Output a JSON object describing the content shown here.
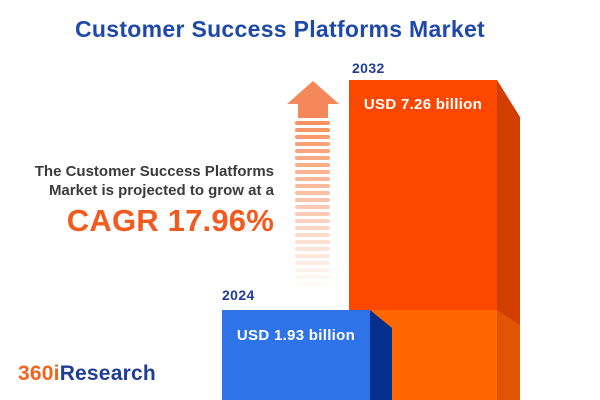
{
  "title": "Customer Success Platforms Market",
  "annotation": {
    "line1": "The Customer Success Platforms",
    "line2": "Market is projected to grow at a",
    "cagr": "CAGR 17.96%"
  },
  "bars": {
    "y2024": {
      "year": "2024",
      "label": "USD 1.93 billion"
    },
    "y2032": {
      "year": "2032",
      "label": "USD 7.26 billion"
    }
  },
  "logo": {
    "part1": "360i",
    "part2": "Research"
  },
  "colors": {
    "title_navy": "#1E49A8",
    "annotation_text": "#3B3B3B",
    "cagr_orange": "#F25A1E",
    "bar_2024_front": "#2E73E8",
    "bar_2024_side": "#04308C",
    "bar_2032_front": "#FB4700",
    "bar_2032_side": "#D23D00",
    "bar_2032_base_front": "#FE6702",
    "bar_2032_base_side": "#E15402",
    "arrow_head": "#F5885A",
    "arrow_stripe": "#F78E5C",
    "logo_orange": "#F2641C",
    "logo_navy": "#1E3D96"
  },
  "chart_data": {
    "type": "bar",
    "title": "Customer Success Platforms Market",
    "categories": [
      "2024",
      "2032"
    ],
    "values": [
      1.93,
      7.26
    ],
    "unit": "USD billion",
    "value_labels": [
      "USD 1.93 billion",
      "USD 7.26 billion"
    ],
    "cagr_percent": 17.96,
    "annotation": "The Customer Success Platforms Market is projected to grow at a CAGR 17.96%",
    "series_colors": [
      "#2E73E8",
      "#FB4700"
    ],
    "legend": false,
    "axes": false,
    "grid": false,
    "style": "3d-infographic-bars"
  }
}
